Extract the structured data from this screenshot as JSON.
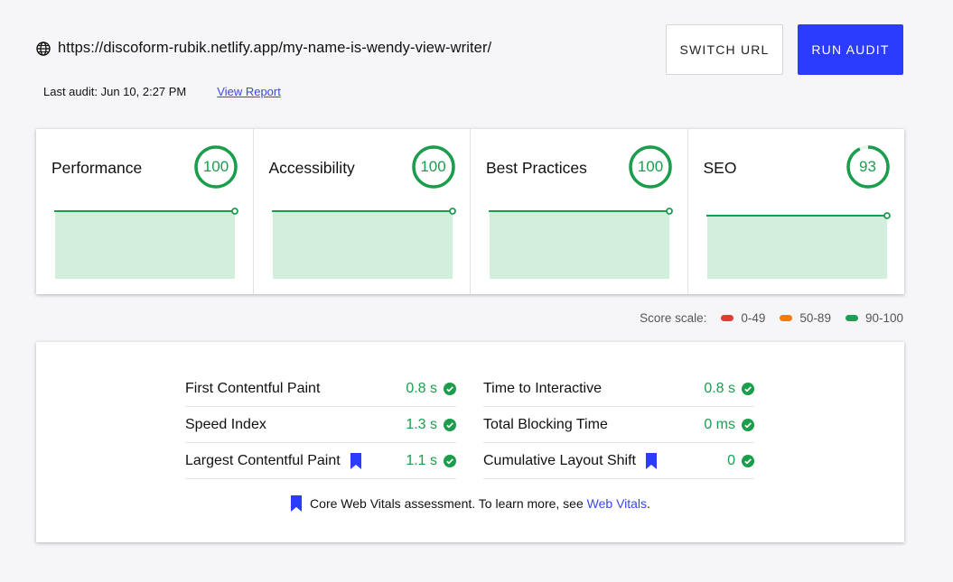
{
  "header": {
    "url": "https://discoform-rubik.netlify.app/my-name-is-wendy-view-writer/",
    "last_audit": "Last audit: Jun 10, 2:27 PM",
    "view_report": "View Report",
    "switch_url_label": "SWITCH URL",
    "run_audit_label": "RUN AUDIT"
  },
  "categories": [
    {
      "title": "Performance",
      "score": "100",
      "value": 100
    },
    {
      "title": "Accessibility",
      "score": "100",
      "value": 100
    },
    {
      "title": "Best Practices",
      "score": "100",
      "value": 100
    },
    {
      "title": "SEO",
      "score": "93",
      "value": 93
    }
  ],
  "score_scale": {
    "label": "Score scale:",
    "ranges": [
      {
        "label": "0-49",
        "color": "#e53935"
      },
      {
        "label": "50-89",
        "color": "#f57c00"
      },
      {
        "label": "90-100",
        "color": "#1aa053"
      }
    ]
  },
  "metrics": {
    "left": [
      {
        "name": "First Contentful Paint",
        "value": "0.8 s",
        "core": false
      },
      {
        "name": "Speed Index",
        "value": "1.3 s",
        "core": false
      },
      {
        "name": "Largest Contentful Paint",
        "value": "1.1 s",
        "core": true
      }
    ],
    "right": [
      {
        "name": "Time to Interactive",
        "value": "0.8 s",
        "core": false
      },
      {
        "name": "Total Blocking Time",
        "value": "0 ms",
        "core": false
      },
      {
        "name": "Cumulative Layout Shift",
        "value": "0",
        "core": true
      }
    ]
  },
  "footnote": {
    "text": "Core Web Vitals assessment. To learn more, see ",
    "link": "Web Vitals",
    "end": "."
  },
  "colors": {
    "good": "#1a9e4c",
    "accent": "#2c3cff",
    "fill": "#d2eedd"
  }
}
